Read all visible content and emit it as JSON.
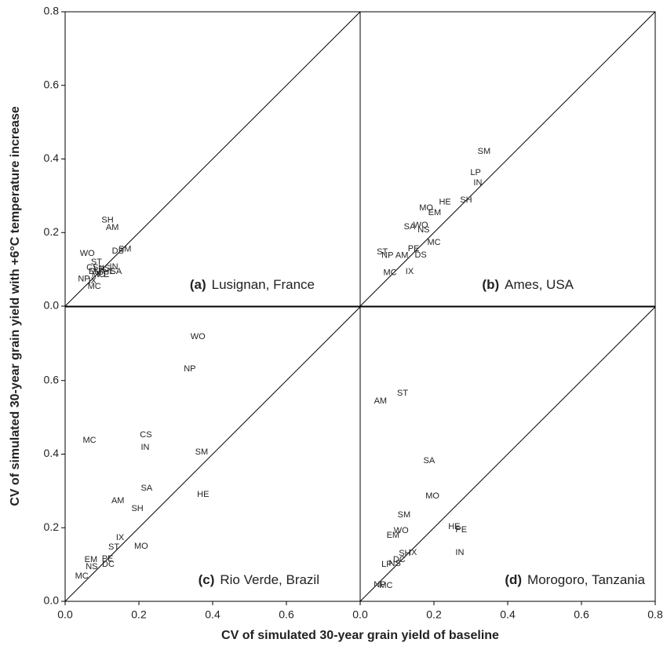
{
  "axes": {
    "xlabel": "CV of simulated 30-year grain yield of baseline",
    "ylabel": "CV of simulated 30-year grain yield with +6°C temperature increase"
  },
  "chart_data": [
    {
      "type": "scatter",
      "panel": "(a)",
      "title": "Lusignan, France",
      "xlim": [
        0,
        0.8
      ],
      "ylim": [
        0,
        0.8
      ],
      "yticks": [
        {
          "value": 0,
          "label": "0.0"
        },
        0.2,
        0.4,
        0.6,
        0.8
      ],
      "labels": [
        "SH",
        "AM",
        "SM",
        "DS",
        "WO",
        "ST",
        "CS",
        "LP",
        "NS",
        "IN",
        "HE",
        "SA",
        "PE",
        "EM",
        "MO",
        "NP",
        "IX",
        "MC"
      ],
      "x": [
        0.115,
        0.128,
        0.162,
        0.143,
        0.06,
        0.085,
        0.074,
        0.091,
        0.106,
        0.132,
        0.119,
        0.138,
        0.104,
        0.081,
        0.091,
        0.051,
        0.074,
        0.079
      ],
      "y": [
        0.233,
        0.213,
        0.154,
        0.149,
        0.143,
        0.119,
        0.104,
        0.1,
        0.102,
        0.107,
        0.094,
        0.094,
        0.085,
        0.094,
        0.085,
        0.073,
        0.068,
        0.053
      ]
    },
    {
      "type": "scatter",
      "panel": "(b)",
      "title": "Ames, USA",
      "xlim": [
        0,
        0.8
      ],
      "ylim": [
        0,
        0.8
      ],
      "labels": [
        "SM",
        "LP",
        "IN",
        "SH",
        "HE",
        "MO",
        "EM",
        "SA",
        "WO",
        "NS",
        "MC",
        "PE",
        "ST",
        "NP",
        "AM",
        "DS",
        "IX",
        "MC"
      ],
      "x": [
        0.336,
        0.313,
        0.319,
        0.287,
        0.23,
        0.179,
        0.202,
        0.134,
        0.164,
        0.172,
        0.2,
        0.145,
        0.06,
        0.074,
        0.113,
        0.164,
        0.134,
        0.081
      ],
      "y": [
        0.42,
        0.363,
        0.335,
        0.288,
        0.282,
        0.267,
        0.254,
        0.215,
        0.22,
        0.207,
        0.173,
        0.156,
        0.147,
        0.137,
        0.137,
        0.139,
        0.094,
        0.09
      ]
    },
    {
      "type": "scatter",
      "panel": "(c)",
      "title": "Rio Verde, Brazil",
      "xlim": [
        0,
        0.8
      ],
      "ylim": [
        0,
        0.8
      ],
      "xticks": [
        {
          "value": 0,
          "label": "0.0"
        },
        0.2,
        0.4,
        0.6
      ],
      "yticks": [
        {
          "value": 0,
          "label": "0.0"
        },
        0.2,
        0.4,
        0.6
      ],
      "labels": [
        "WO",
        "NP",
        "MC",
        "CS",
        "IN",
        "SM",
        "SA",
        "HE",
        "AM",
        "SH",
        "IX",
        "ST",
        "MO",
        "EM",
        "PE",
        "NS",
        "DC",
        "MC"
      ],
      "x": [
        0.36,
        0.338,
        0.066,
        0.219,
        0.217,
        0.37,
        0.221,
        0.374,
        0.143,
        0.196,
        0.149,
        0.132,
        0.206,
        0.07,
        0.115,
        0.072,
        0.117,
        0.045
      ],
      "y": [
        0.719,
        0.631,
        0.437,
        0.452,
        0.418,
        0.405,
        0.307,
        0.29,
        0.273,
        0.252,
        0.173,
        0.147,
        0.149,
        0.113,
        0.115,
        0.094,
        0.1,
        0.068
      ]
    },
    {
      "type": "scatter",
      "panel": "(d)",
      "title": "Morogoro, Tanzania",
      "xlim": [
        0,
        0.8
      ],
      "ylim": [
        0,
        0.8
      ],
      "xticks": [
        {
          "value": 0,
          "label": "0.0"
        },
        0.2,
        0.4,
        0.6,
        0.8
      ],
      "labels": [
        "AM",
        "ST",
        "SA",
        "MO",
        "SM",
        "HE",
        "PE",
        "WO",
        "EM",
        "IN",
        "SH",
        "IX",
        "LP",
        "NS",
        "DC",
        "NP",
        "MC"
      ],
      "x": [
        0.055,
        0.115,
        0.187,
        0.196,
        0.119,
        0.255,
        0.274,
        0.111,
        0.089,
        0.27,
        0.121,
        0.143,
        0.072,
        0.094,
        0.106,
        0.053,
        0.07
      ],
      "y": [
        0.544,
        0.565,
        0.382,
        0.286,
        0.235,
        0.203,
        0.194,
        0.192,
        0.179,
        0.132,
        0.13,
        0.132,
        0.1,
        0.102,
        0.113,
        0.045,
        0.043
      ]
    }
  ]
}
